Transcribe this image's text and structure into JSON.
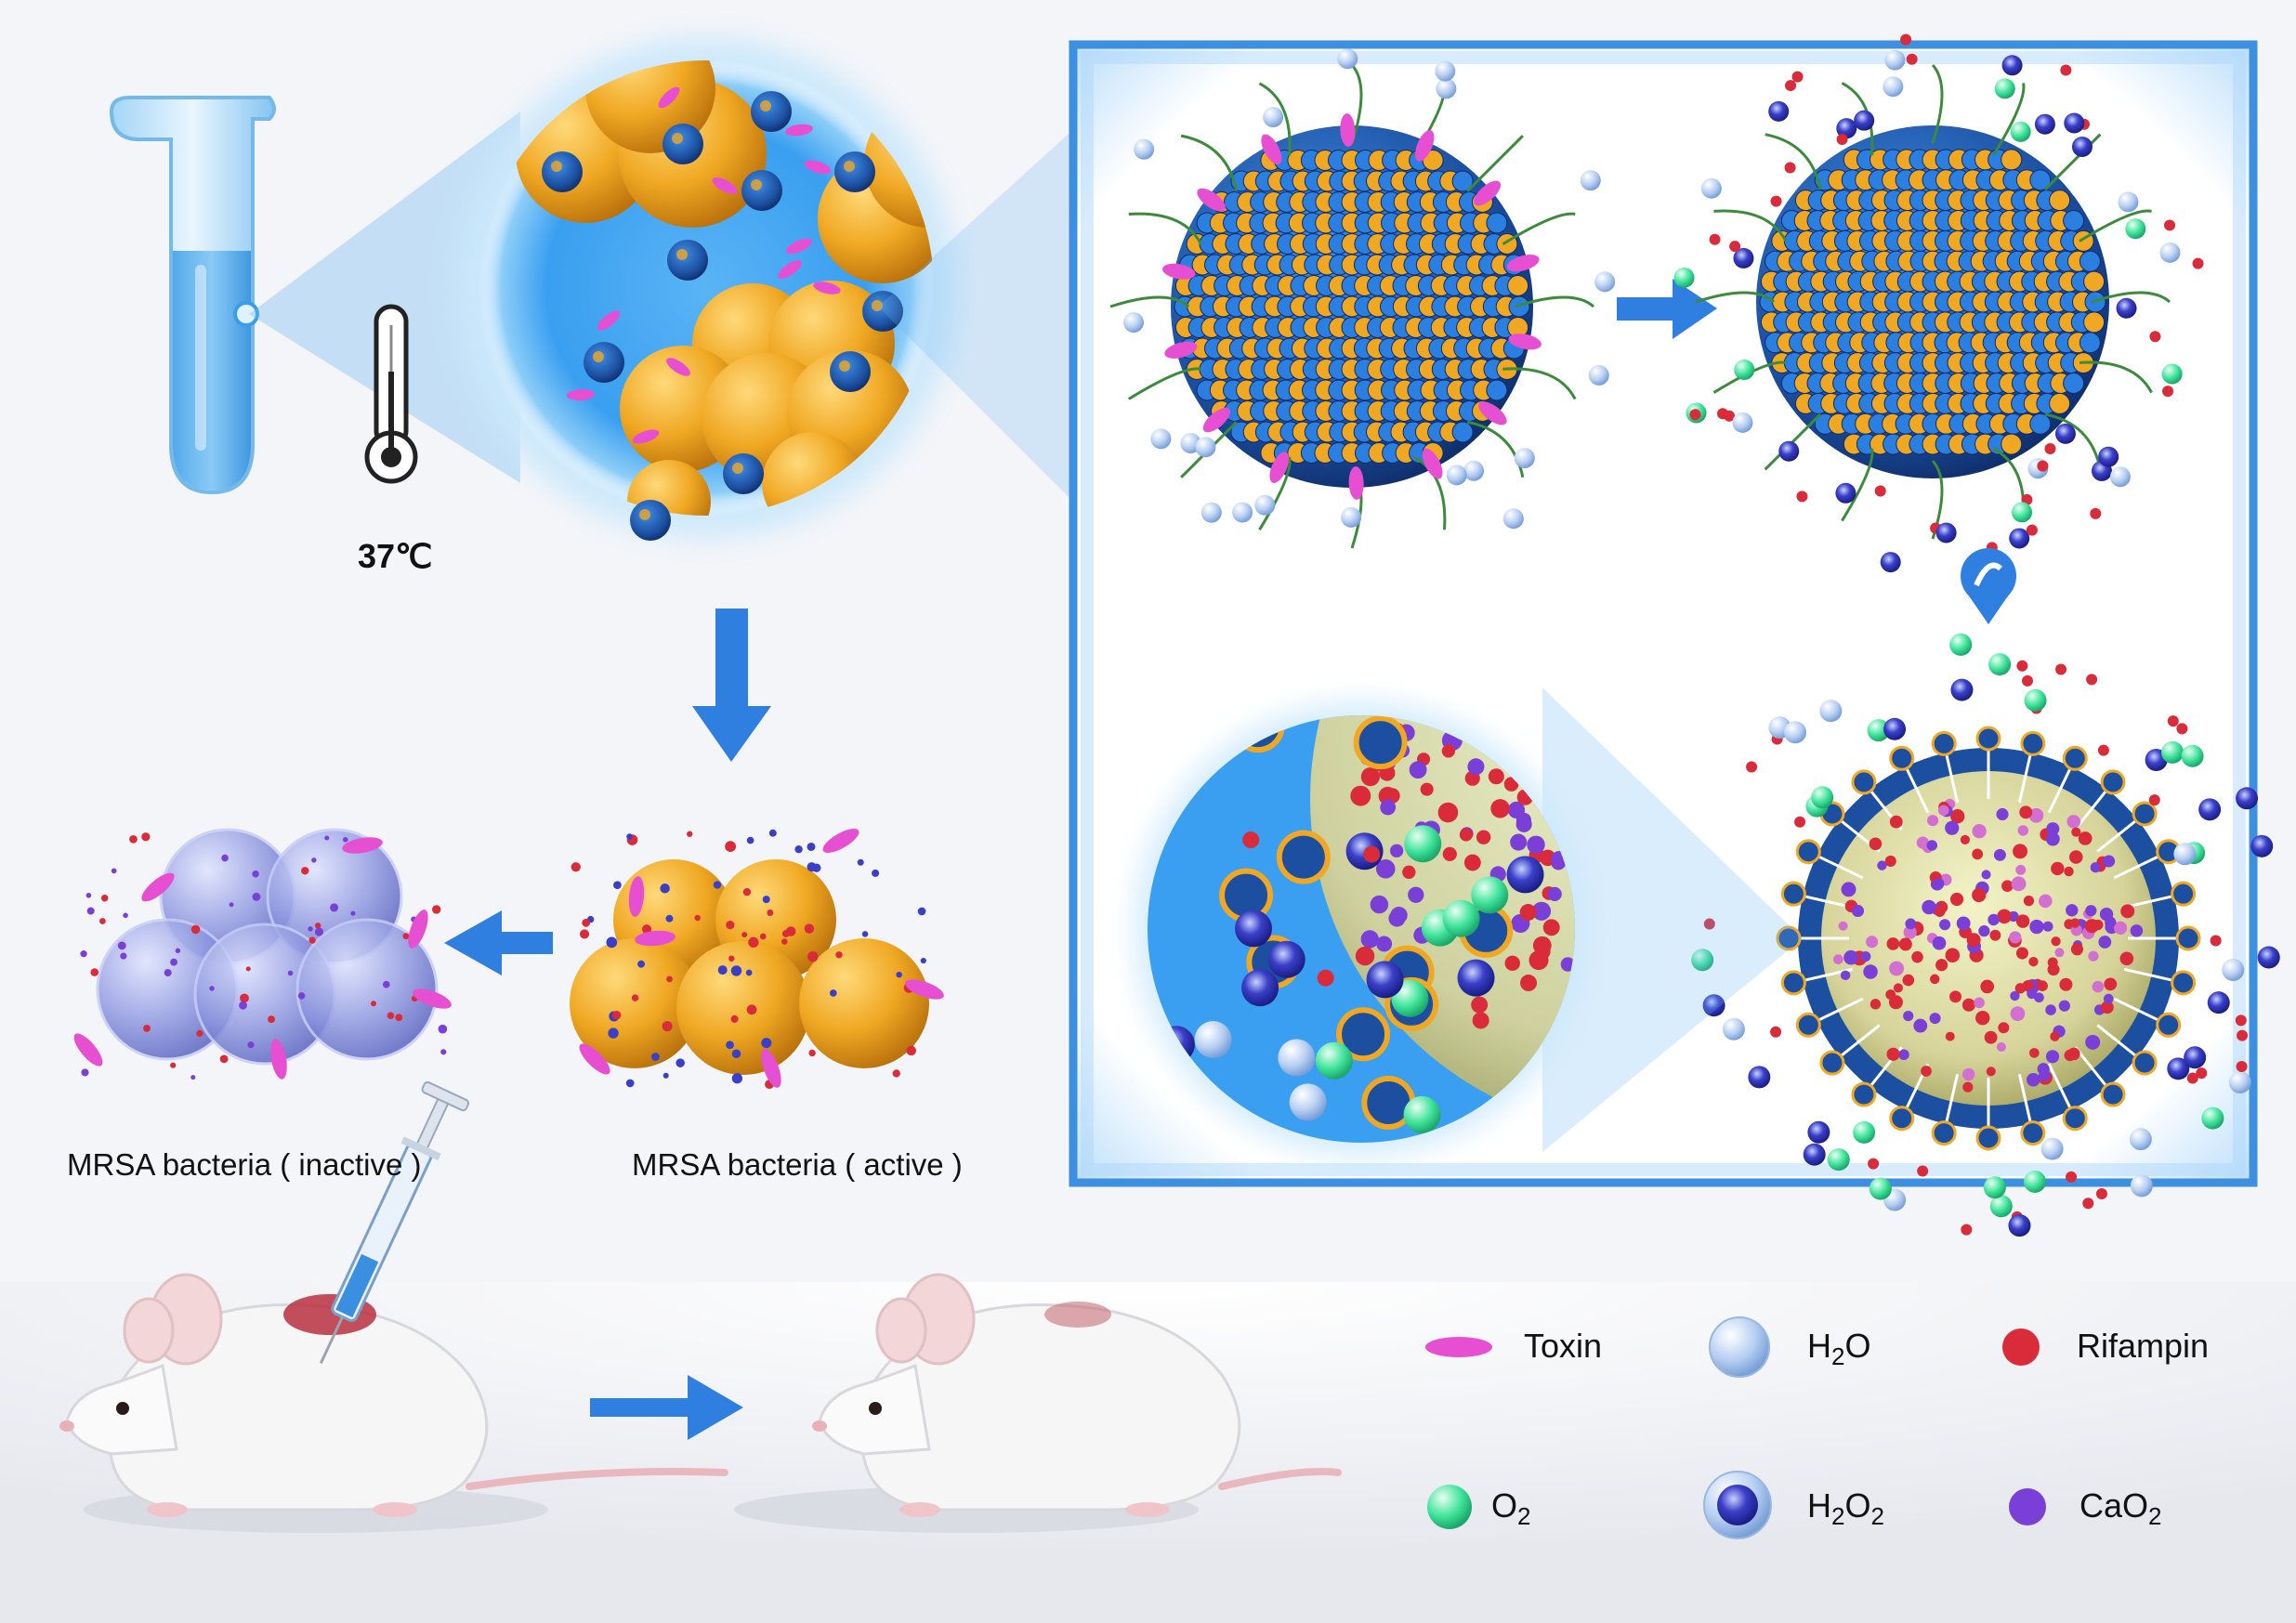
{
  "temperature_label": "37℃",
  "bacteria_labels": {
    "inactive": "MRSA bacteria ( inactive )",
    "active": "MRSA bacteria ( active )"
  },
  "legend": {
    "toxin": "Toxin",
    "h2o_main": "H",
    "h2o_sub": "2",
    "h2o_tail": "O",
    "rifampin": "Rifampin",
    "o2_main": "O",
    "o2_sub": "2",
    "h2o2_main": "H",
    "h2o2_sub1": "2",
    "h2o2_mid": "O",
    "h2o2_sub2": "2",
    "cao2_main": "CaO",
    "cao2_sub": "2"
  },
  "colors": {
    "background": "#f4f5f8",
    "panel_border": "#3d8fe0",
    "arrow": "#2f7fe0",
    "bacteria_active": "#f0a823",
    "bacteria_inactive": "#7f89d8",
    "toxin": "#e64fd1",
    "rifampin": "#d92b3a",
    "oxygen": "#3fe39a",
    "cao2": "#7a3fd6",
    "h2o2": "#3a3fc8",
    "h2o": "#b7cff2"
  },
  "icons": [
    "test-tube-icon",
    "thermometer-icon",
    "syringe-icon",
    "mouse-icon"
  ]
}
